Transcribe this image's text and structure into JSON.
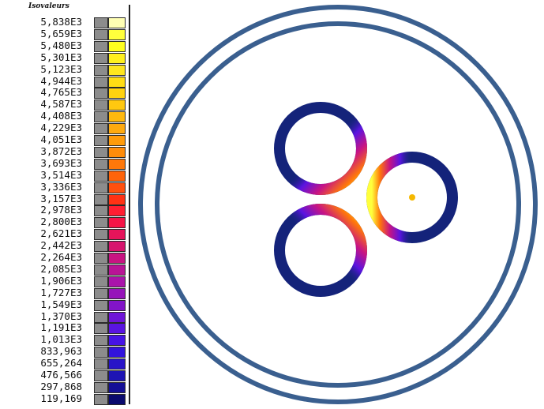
{
  "legend": {
    "title": "Isovaleurs",
    "entries": [
      {
        "label": "5,838E3",
        "color": "#ffffb4"
      },
      {
        "label": "5,659E3",
        "color": "#ffff3c"
      },
      {
        "label": "5,480E3",
        "color": "#ffff1e"
      },
      {
        "label": "5,301E3",
        "color": "#fff01e"
      },
      {
        "label": "5,123E3",
        "color": "#ffe61e"
      },
      {
        "label": "4,944E3",
        "color": "#ffdc14"
      },
      {
        "label": "4,765E3",
        "color": "#ffd20f"
      },
      {
        "label": "4,587E3",
        "color": "#ffc80f"
      },
      {
        "label": "4,408E3",
        "color": "#ffb90f"
      },
      {
        "label": "4,229E3",
        "color": "#ffaa0f"
      },
      {
        "label": "4,051E3",
        "color": "#ff9b0a"
      },
      {
        "label": "3,872E3",
        "color": "#ff8c0a"
      },
      {
        "label": "3,693E3",
        "color": "#ff780a"
      },
      {
        "label": "3,514E3",
        "color": "#ff640a"
      },
      {
        "label": "3,336E3",
        "color": "#ff500f"
      },
      {
        "label": "3,157E3",
        "color": "#ff3214"
      },
      {
        "label": "2,978E3",
        "color": "#ff1e32"
      },
      {
        "label": "2,800E3",
        "color": "#f51446"
      },
      {
        "label": "2,621E3",
        "color": "#e6145a"
      },
      {
        "label": "2,442E3",
        "color": "#d7146e"
      },
      {
        "label": "2,264E3",
        "color": "#c81482"
      },
      {
        "label": "2,085E3",
        "color": "#b91496"
      },
      {
        "label": "1,906E3",
        "color": "#aa14aa"
      },
      {
        "label": "1,727E3",
        "color": "#9614b9"
      },
      {
        "label": "1,549E3",
        "color": "#8214c8"
      },
      {
        "label": "1,370E3",
        "color": "#6e14d7"
      },
      {
        "label": "1,191E3",
        "color": "#5a14e1"
      },
      {
        "label": "1,013E3",
        "color": "#4614e6"
      },
      {
        "label": "833,963",
        "color": "#3214dc"
      },
      {
        "label": "655,264",
        "color": "#2814c8"
      },
      {
        "label": "476,566",
        "color": "#1e14b4"
      },
      {
        "label": "297,868",
        "color": "#140f96"
      },
      {
        "label": "119,169",
        "color": "#0a0a6e"
      }
    ]
  },
  "colors": {
    "outer_rings": "#3a5f8f",
    "conductor_base": "#14237a",
    "hotspot_marker": "#f5b800"
  }
}
